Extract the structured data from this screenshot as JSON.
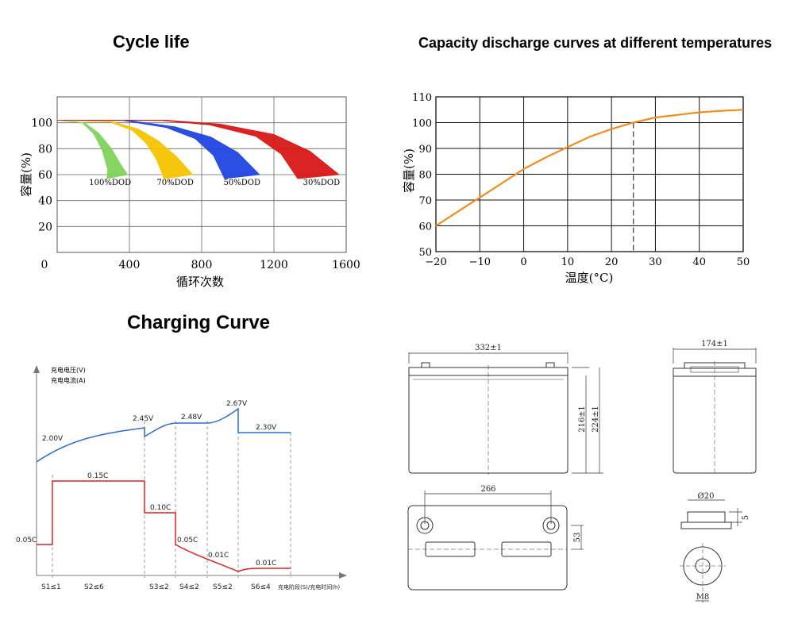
{
  "chart_data": [
    {
      "type": "line",
      "title": "Cycle life",
      "xlabel": "循环次数",
      "ylabel": "容量(%)",
      "xlim": [
        0,
        1600
      ],
      "ylim": [
        0,
        120
      ],
      "x_ticks": [
        "0",
        "400",
        "800",
        "1200",
        "1600"
      ],
      "y_ticks": [
        "20",
        "40",
        "60",
        "80",
        "100"
      ],
      "grid": true,
      "series": [
        {
          "name": "100%DOD",
          "color": "#7fd35a",
          "x": [
            0,
            150,
            230,
            300,
            360,
            390
          ],
          "y": [
            102,
            100,
            92,
            80,
            66,
            60
          ]
        },
        {
          "name": "70%DOD",
          "color": "#f5c400",
          "x": [
            0,
            300,
            450,
            560,
            660,
            750
          ],
          "y": [
            102,
            101,
            95,
            86,
            74,
            60
          ]
        },
        {
          "name": "50%DOD",
          "color": "#2046e0",
          "x": [
            0,
            380,
            650,
            850,
            1000,
            1120
          ],
          "y": [
            102,
            102,
            97,
            89,
            77,
            60
          ]
        },
        {
          "name": "30%DOD",
          "color": "#d81818",
          "x": [
            0,
            600,
            900,
            1200,
            1400,
            1560
          ],
          "y": [
            102,
            102,
            99,
            91,
            78,
            60
          ]
        }
      ],
      "annotations": [
        "100%DOD",
        "70%DOD",
        "50%DOD",
        "30%DOD"
      ]
    },
    {
      "type": "line",
      "title": "Capacity discharge curves at different temperatures",
      "xlabel": "温度(°C)",
      "ylabel": "容量(%)",
      "xlim": [
        -20,
        50
      ],
      "ylim": [
        50,
        110
      ],
      "x_ticks": [
        "−20",
        "−10",
        "0",
        "10",
        "20",
        "30",
        "40",
        "50"
      ],
      "y_ticks": [
        "50",
        "60",
        "70",
        "80",
        "90",
        "100",
        "110"
      ],
      "grid": true,
      "reference_line": {
        "x": 25,
        "y": 100
      },
      "series": [
        {
          "name": "capacity",
          "color": "#f28c1c",
          "x": [
            -20,
            -15,
            -10,
            -5,
            0,
            5,
            10,
            15,
            20,
            25,
            30,
            35,
            40,
            45,
            50
          ],
          "y": [
            60,
            65.5,
            71,
            76.5,
            82,
            86.5,
            90.5,
            94.5,
            97.5,
            100,
            102,
            103,
            104,
            104.6,
            105
          ]
        }
      ]
    },
    {
      "type": "line",
      "title": "Charging Curve",
      "legend": [
        "充电电压(V)",
        "充电电流(A)"
      ],
      "xlabel": "充电阶段(S)/充电时间(h)",
      "stages": [
        "S1≤1",
        "S2≤6",
        "S3≤2",
        "S4≤2",
        "S5≤2",
        "S6≤4"
      ],
      "series": [
        {
          "name": "voltage",
          "color": "#2b6cd6",
          "labels": [
            "2.00V",
            "2.45V",
            "2.48V",
            "2.67V",
            "2.30V"
          ]
        },
        {
          "name": "current",
          "color": "#e02020",
          "labels": [
            "0.05C",
            "0.15C",
            "0.10C",
            "0.05C",
            "0.01C",
            "0.01C"
          ]
        }
      ]
    }
  ],
  "drawing": {
    "front_width": "332±1",
    "side_width": "174±1",
    "height_a": "216±1",
    "height_b": "224±1",
    "terminal_spacing": "266",
    "terminal_offset": "53",
    "terminal_diameter": "Ø20",
    "terminal_height": "5",
    "bolt": "M8"
  }
}
